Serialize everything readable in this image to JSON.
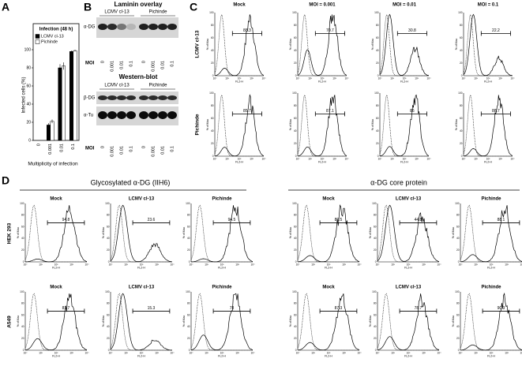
{
  "chart_data": {
    "type": "bar",
    "title": "Infection (48 h)",
    "y_label": "Infected cells (%)",
    "x_label": "Multiplicity of infection",
    "categories": [
      "0",
      "0.001",
      "0.01",
      "0.1"
    ],
    "series": [
      {
        "name": "LCMV cl-13",
        "color": "#000000",
        "values": [
          0,
          17,
          80,
          98
        ],
        "errors": [
          0,
          2,
          4,
          1
        ]
      },
      {
        "name": "Pichinde",
        "color": "#ffffff",
        "values": [
          0,
          21,
          82,
          99
        ],
        "errors": [
          0,
          2,
          4,
          1
        ]
      }
    ],
    "ylim": [
      0,
      100
    ],
    "yticks": [
      0,
      20,
      40,
      60,
      80,
      100
    ],
    "grid": false,
    "legend": "top-left"
  },
  "panel_labels": [
    "A",
    "B",
    "C",
    "D"
  ],
  "panel_b": {
    "laminin_title": "Laminin overlay",
    "groups": [
      "LCMV cl-13",
      "Pichinde"
    ],
    "alpha_dg": "α-DG",
    "moi_label": "MOI",
    "lanes": [
      "0",
      "0.001",
      "0.01",
      "0.1",
      "0",
      "0.001",
      "0.01",
      "0.1"
    ],
    "western_title": "Western-blot",
    "beta_dg": "β-DG",
    "alpha_tu": "α-Tu"
  },
  "hist_axis": {
    "y_label": "% of Max",
    "x_label": "FL2-H",
    "yticks": [
      "0",
      "20",
      "40",
      "60",
      "80",
      "100"
    ],
    "xticks": [
      "10⁰",
      "10¹",
      "10²",
      "10³",
      "10⁴"
    ]
  },
  "panel_c": {
    "columns": [
      "Mock",
      "MOI = 0.001",
      "MOI = 0.01",
      "MOI = 0.1"
    ],
    "rows": [
      {
        "label": "LCMV cl-13",
        "values": [
          88.3,
          70.7,
          30.8,
          22.2
        ]
      },
      {
        "label": "Pichinde",
        "values": [
          85.7,
          87.1,
          86,
          88.7
        ]
      }
    ]
  },
  "panel_d": {
    "groups": [
      {
        "title": "Glycosylated α-DG (IIH6)",
        "columns": [
          "Mock",
          "LCMV cl-13",
          "Pichinde"
        ]
      },
      {
        "title": "α-DG core protein",
        "columns": [
          "Mock",
          "LCMV cl-13",
          "Pichinde"
        ]
      }
    ],
    "rows": [
      {
        "label": "HEK 293",
        "values": [
          [
            94.8,
            23.6,
            94.5
          ],
          [
            89.5,
            44.8,
            88.1
          ]
        ]
      },
      {
        "label": "A549",
        "values": [
          [
            81.7,
            15.3,
            78
          ],
          [
            87.3,
            78.7,
            90.3
          ]
        ]
      }
    ]
  }
}
